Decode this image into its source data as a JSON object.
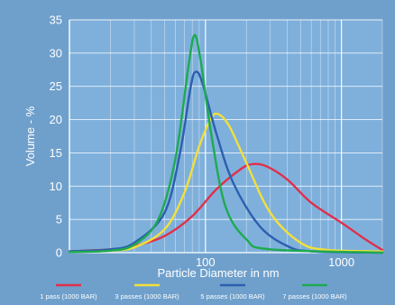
{
  "chart_data": {
    "type": "line",
    "xlabel": "Particle Diameter in nm",
    "ylabel": "Volume - %",
    "x_scale": "log",
    "xlim": [
      10,
      2000
    ],
    "ylim": [
      0,
      35
    ],
    "grid": true,
    "legend_position": "bottom",
    "y_ticks": [
      0,
      5,
      10,
      15,
      20,
      25,
      30,
      35
    ],
    "x_tick_labels": [
      {
        "value": 100,
        "label": "100"
      },
      {
        "value": 1000,
        "label": "1000"
      }
    ],
    "series": [
      {
        "name": "1 pass (1000 BAR)",
        "color": "#e0304a",
        "points": [
          [
            10,
            0.2
          ],
          [
            20,
            0.5
          ],
          [
            30,
            1.0
          ],
          [
            50,
            2.5
          ],
          [
            80,
            5.5
          ],
          [
            120,
            9.5
          ],
          [
            180,
            12.5
          ],
          [
            220,
            13.3
          ],
          [
            280,
            13.0
          ],
          [
            400,
            11.0
          ],
          [
            600,
            7.5
          ],
          [
            1000,
            4.5
          ],
          [
            1500,
            2.0
          ],
          [
            2000,
            0.4
          ]
        ]
      },
      {
        "name": "3 passes (1000 BAR)",
        "color": "#f2e03a",
        "points": [
          [
            10,
            0.1
          ],
          [
            20,
            0.3
          ],
          [
            30,
            0.8
          ],
          [
            50,
            3.5
          ],
          [
            70,
            9.0
          ],
          [
            90,
            16.0
          ],
          [
            110,
            20.2
          ],
          [
            125,
            20.8
          ],
          [
            150,
            19.0
          ],
          [
            200,
            13.5
          ],
          [
            300,
            6.0
          ],
          [
            500,
            1.5
          ],
          [
            800,
            0.4
          ],
          [
            2000,
            0.2
          ]
        ]
      },
      {
        "name": "5 passes (1000 BAR)",
        "color": "#2c5fb0",
        "points": [
          [
            10,
            0.2
          ],
          [
            20,
            0.5
          ],
          [
            30,
            1.5
          ],
          [
            50,
            6.0
          ],
          [
            65,
            15.0
          ],
          [
            78,
            25.0
          ],
          [
            85,
            27.2
          ],
          [
            95,
            25.5
          ],
          [
            120,
            18.0
          ],
          [
            160,
            10.5
          ],
          [
            250,
            4.0
          ],
          [
            400,
            1.0
          ],
          [
            600,
            0.2
          ],
          [
            2000,
            0.0
          ]
        ]
      },
      {
        "name": "7 passes (1000 BAR)",
        "color": "#1eaa50",
        "points": [
          [
            10,
            0.1
          ],
          [
            20,
            0.3
          ],
          [
            30,
            1.2
          ],
          [
            45,
            5.0
          ],
          [
            60,
            14.0
          ],
          [
            75,
            28.0
          ],
          [
            83,
            32.7
          ],
          [
            92,
            29.0
          ],
          [
            110,
            18.0
          ],
          [
            140,
            7.0
          ],
          [
            200,
            2.0
          ],
          [
            300,
            0.5
          ],
          [
            2000,
            0.0
          ]
        ]
      }
    ]
  }
}
